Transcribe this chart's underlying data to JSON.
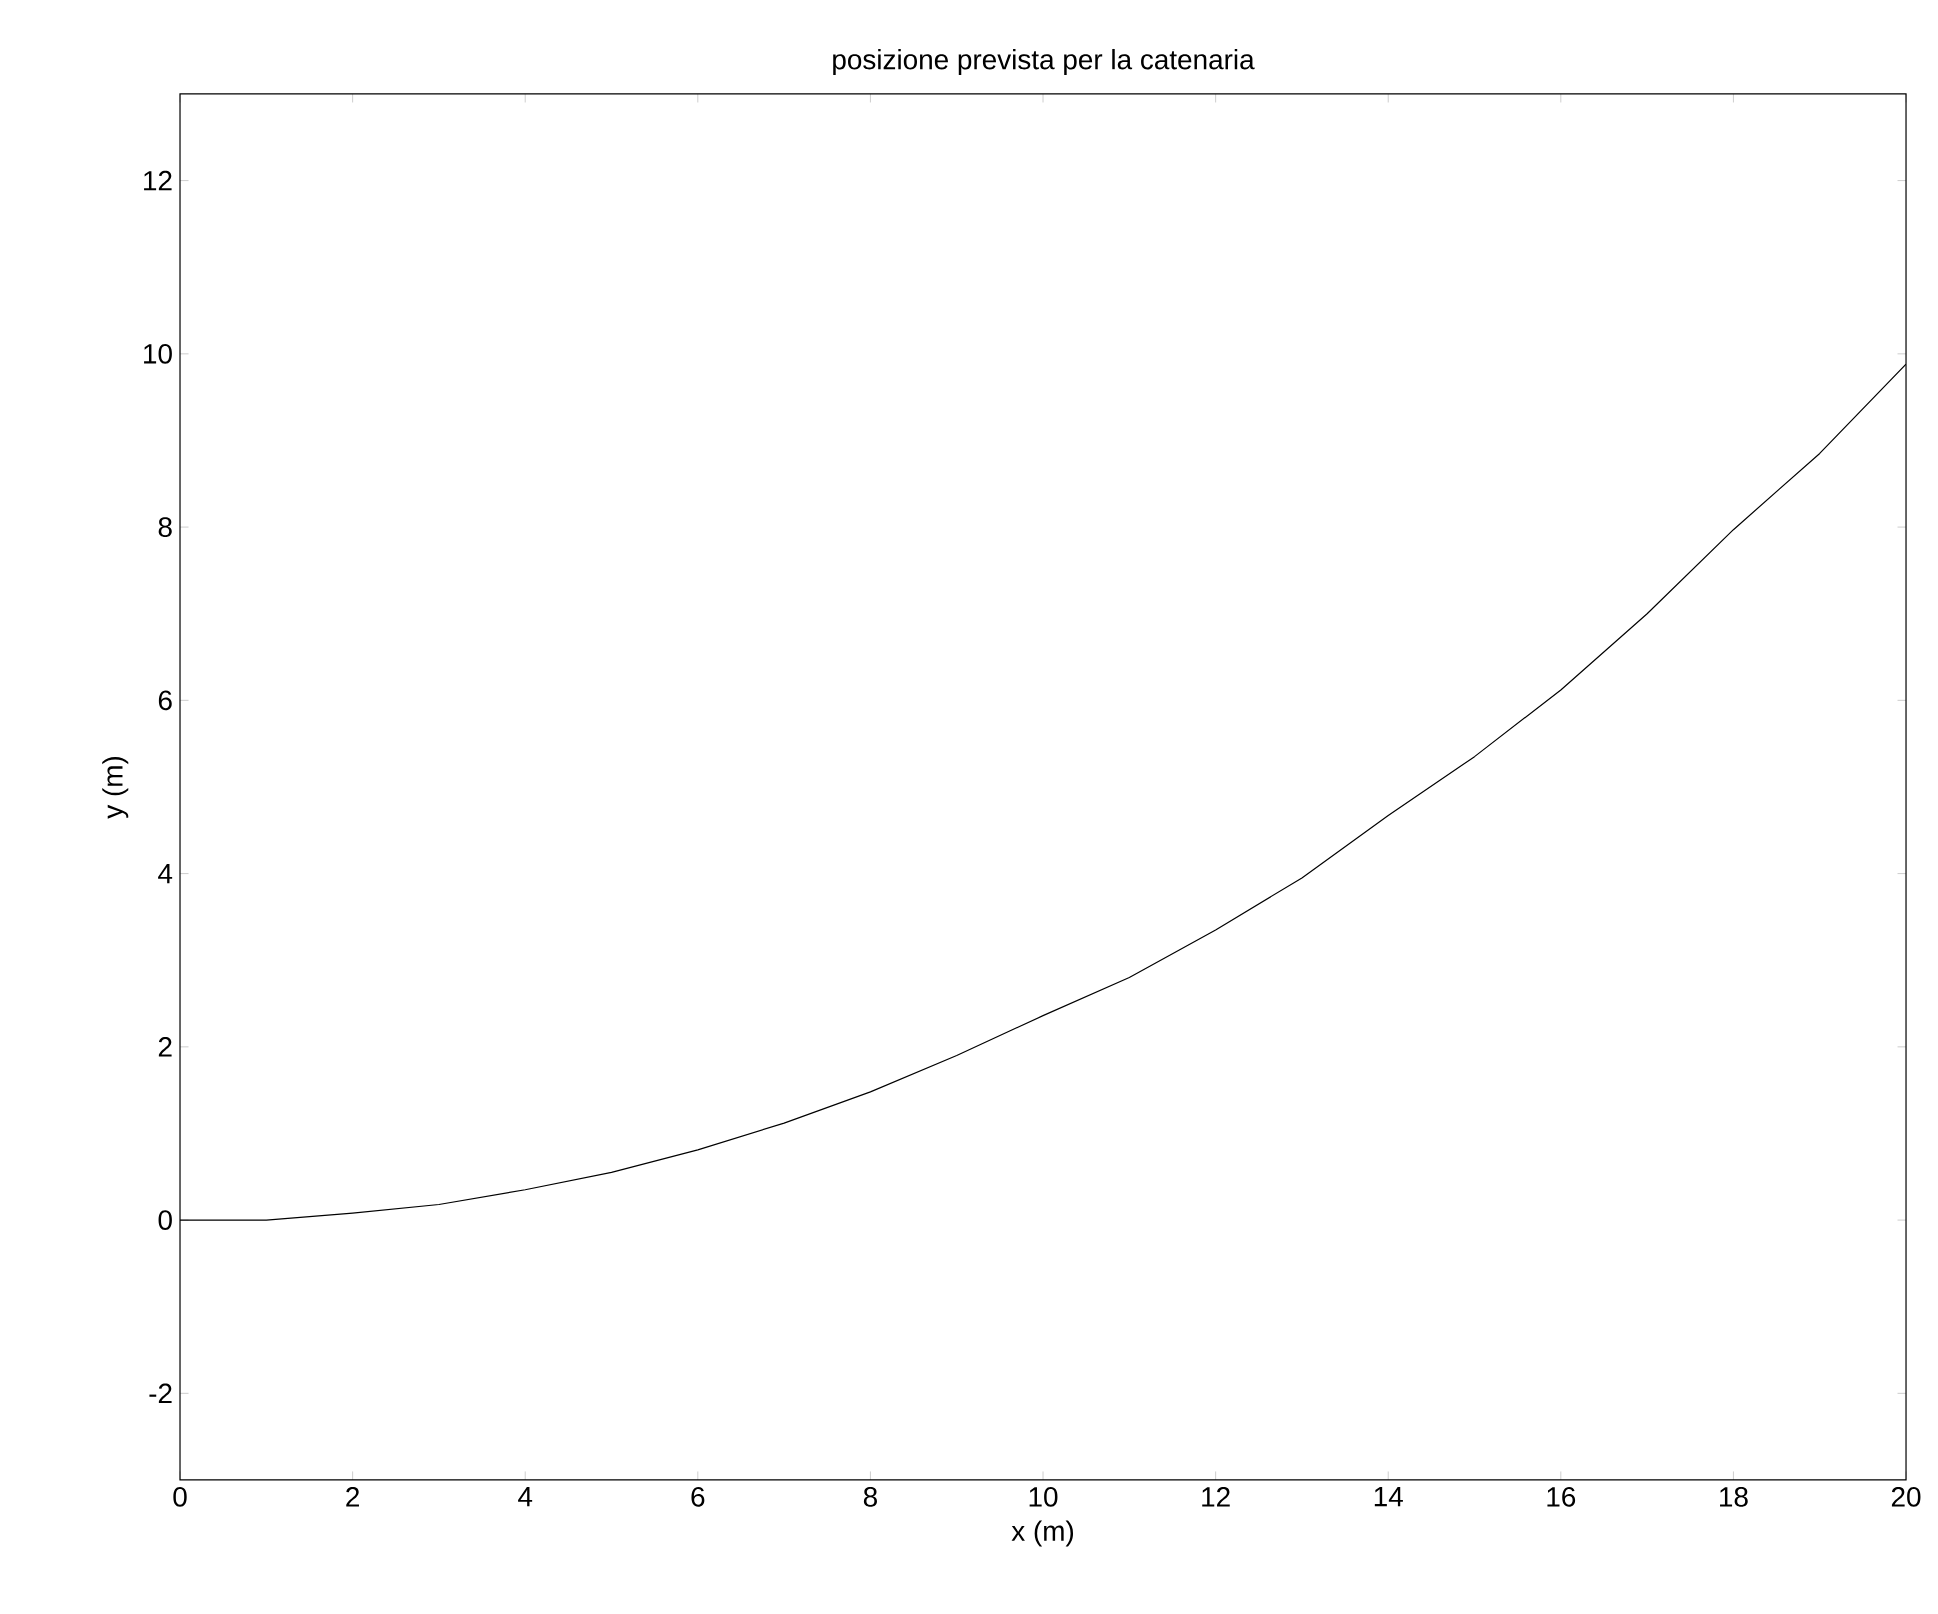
{
  "chart_data": {
    "type": "line",
    "title": "posizione prevista per la catenaria",
    "xlabel": "x (m)",
    "ylabel": "y (m)",
    "x": [
      0,
      1,
      2,
      3,
      4,
      5,
      6,
      7,
      8,
      9,
      10,
      11,
      12,
      13,
      14,
      15,
      16,
      17,
      18,
      19,
      20
    ],
    "series": [
      {
        "color": "#000000",
        "values": [
          0,
          0,
          0.08,
          0.18,
          0.35,
          0.55,
          0.81,
          1.12,
          1.48,
          1.9,
          2.36,
          2.8,
          3.35,
          3.95,
          4.67,
          5.35,
          6.12,
          7.0,
          7.97,
          8.85,
          9.88
        ]
      }
    ],
    "xlim": [
      0,
      20
    ],
    "ylim": [
      -3,
      13
    ],
    "xticks": [
      0,
      2,
      4,
      6,
      8,
      10,
      12,
      14,
      16,
      18,
      20
    ],
    "yticks": [
      -2,
      0,
      2,
      4,
      6,
      8,
      10,
      12
    ],
    "grid": false,
    "marker": "none",
    "line_style": "solid"
  }
}
